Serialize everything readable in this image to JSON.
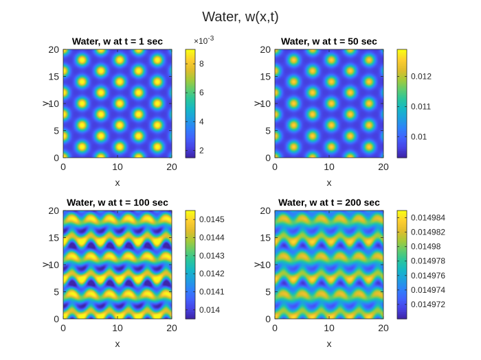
{
  "figure": {
    "title": "Water, w(x,t)",
    "colormap": [
      "#3e26a8",
      "#4743e5",
      "#4262fd",
      "#2f82fa",
      "#1fa0df",
      "#16b8c5",
      "#2bc59c",
      "#61cc6d",
      "#a5ca3a",
      "#e0bd2d",
      "#fdcd30",
      "#f9fb15"
    ]
  },
  "chart_data": [
    {
      "type": "heatmap",
      "title": "Water, w at t = 1 sec",
      "xlabel": "x",
      "ylabel": "y",
      "xlim": [
        0,
        20
      ],
      "ylim": [
        0,
        20
      ],
      "xticks": [
        0,
        10,
        20
      ],
      "yticks": [
        0,
        5,
        10,
        15,
        20
      ],
      "xtick_labels": [
        "0",
        "10",
        "20"
      ],
      "ytick_labels": [
        "0",
        "5",
        "10",
        "15",
        "20"
      ],
      "clim": [
        0.0015,
        0.009
      ],
      "cticks": [
        0.002,
        0.004,
        0.006,
        0.008
      ],
      "ctick_labels": [
        "2",
        "4",
        "6",
        "8"
      ],
      "colorbar_exponent": "×10-3",
      "pattern": "spots",
      "pattern_params": {
        "k": 1.81,
        "phase": 0.0,
        "contrast": 1.0
      }
    },
    {
      "type": "heatmap",
      "title": "Water, w at t = 50 sec",
      "xlabel": "x",
      "ylabel": "y",
      "xlim": [
        0,
        20
      ],
      "ylim": [
        0,
        20
      ],
      "xticks": [
        0,
        10,
        20
      ],
      "yticks": [
        0,
        5,
        10,
        15,
        20
      ],
      "xtick_labels": [
        "0",
        "10",
        "20"
      ],
      "ytick_labels": [
        "0",
        "5",
        "10",
        "15",
        "20"
      ],
      "clim": [
        0.0093,
        0.0129
      ],
      "cticks": [
        0.01,
        0.011,
        0.012
      ],
      "ctick_labels": [
        "0.01",
        "0.011",
        "0.012"
      ],
      "colorbar_exponent": "",
      "pattern": "spots",
      "pattern_params": {
        "k": 1.81,
        "phase": 0.0,
        "contrast": 0.85
      }
    },
    {
      "type": "heatmap",
      "title": "Water, w at t = 100 sec",
      "xlabel": "x",
      "ylabel": "y",
      "xlim": [
        0,
        20
      ],
      "ylim": [
        0,
        20
      ],
      "xticks": [
        0,
        10,
        20
      ],
      "yticks": [
        0,
        5,
        10,
        15,
        20
      ],
      "xtick_labels": [
        "0",
        "10",
        "20"
      ],
      "ytick_labels": [
        "0",
        "5",
        "10",
        "15",
        "20"
      ],
      "clim": [
        0.01395,
        0.01455
      ],
      "cticks": [
        0.014,
        0.0141,
        0.0142,
        0.0143,
        0.0144,
        0.0145
      ],
      "ctick_labels": [
        "0.014",
        "0.0141",
        "0.0142",
        "0.0143",
        "0.0144",
        "0.0145"
      ],
      "colorbar_exponent": "",
      "pattern": "waves",
      "pattern_params": {
        "k": 1.81,
        "phase": 0.3,
        "contrast": 1.0
      }
    },
    {
      "type": "heatmap",
      "title": "Water, w at t = 200 sec",
      "xlabel": "x",
      "ylabel": "y",
      "xlim": [
        0,
        20
      ],
      "ylim": [
        0,
        20
      ],
      "xticks": [
        0,
        10,
        20
      ],
      "yticks": [
        0,
        5,
        10,
        15,
        20
      ],
      "xtick_labels": [
        "0",
        "10",
        "20"
      ],
      "ytick_labels": [
        "0",
        "5",
        "10",
        "15",
        "20"
      ],
      "clim": [
        0.01497,
        0.014985
      ],
      "cticks": [
        0.014972,
        0.014974,
        0.014976,
        0.014978,
        0.01498,
        0.014982,
        0.014984
      ],
      "ctick_labels": [
        "0.014972",
        "0.014974",
        "0.014976",
        "0.014978",
        "0.01498",
        "0.014982",
        "0.014984"
      ],
      "colorbar_exponent": "",
      "pattern": "waves",
      "pattern_params": {
        "k": 1.81,
        "phase": 0.3,
        "contrast": 0.7
      }
    }
  ]
}
